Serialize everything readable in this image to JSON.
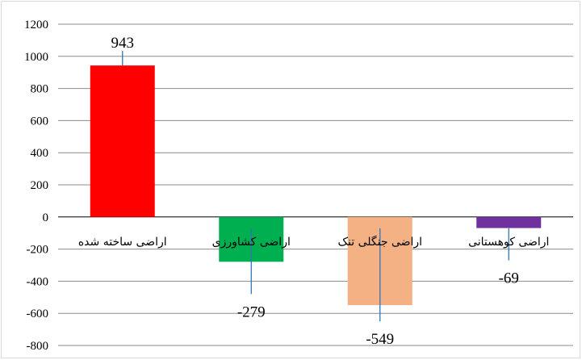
{
  "chart_data": {
    "type": "bar",
    "title": "",
    "xlabel": "",
    "ylabel": "",
    "categories": [
      "اراضی ساخته شده",
      "اراضی کشاورزی",
      "اراضی جنگلی تنک",
      "اراضی کوهستانی"
    ],
    "values": [
      943,
      -279,
      -549,
      -69
    ],
    "data_labels": [
      "943",
      "-279",
      "-549",
      "-69"
    ],
    "colors": [
      "#ff0000",
      "#00b050",
      "#f4b183",
      "#7030a0"
    ],
    "ylim": [
      -800,
      1200
    ],
    "yticks": [
      -800,
      -600,
      -400,
      -200,
      0,
      200,
      400,
      600,
      800,
      1000,
      1200
    ],
    "ytick_labels": [
      "-800",
      "-600",
      "-400",
      "-200",
      "0",
      "200",
      "400",
      "600",
      "800",
      "1000",
      "1200"
    ],
    "grid": true,
    "legend": "none"
  }
}
